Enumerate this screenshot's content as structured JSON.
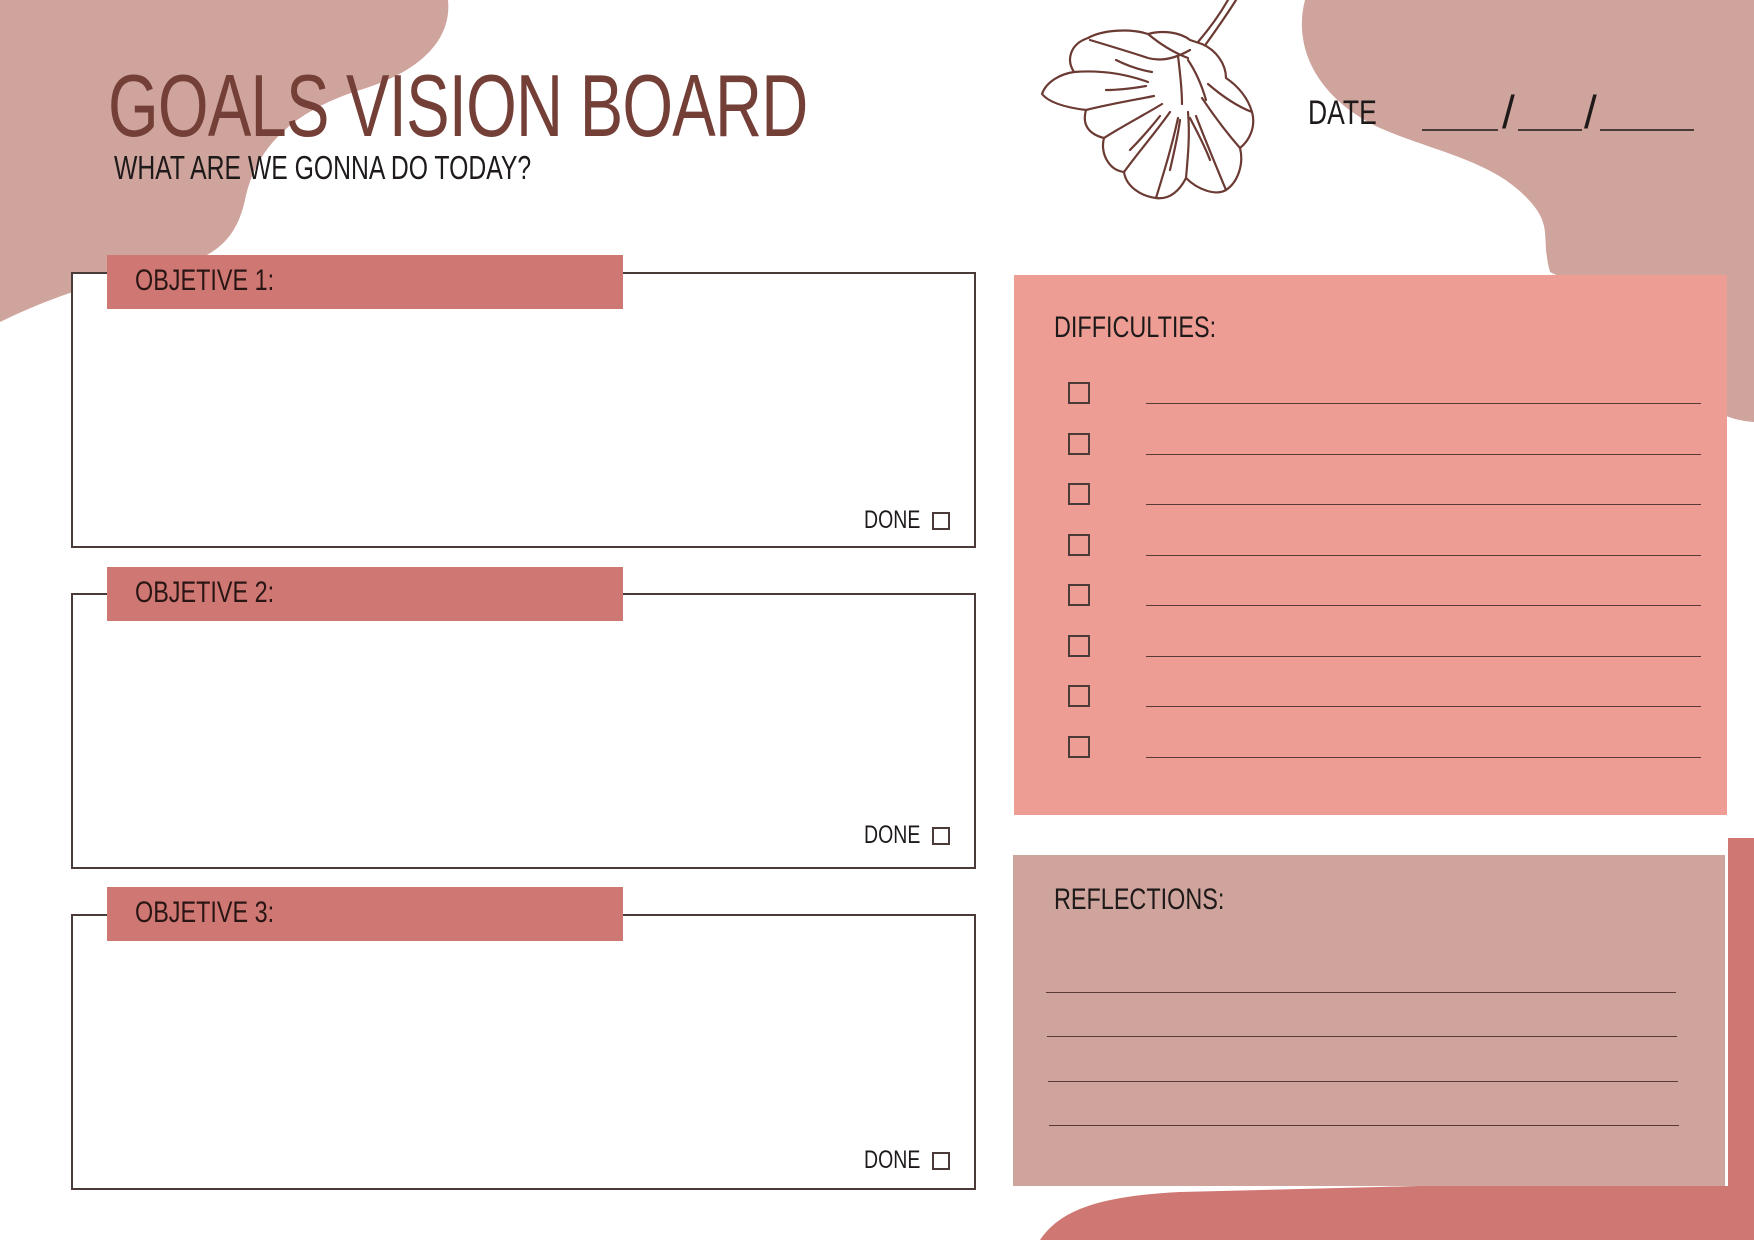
{
  "header": {
    "title": "GOALS VISION BOARD",
    "subtitle": "WHAT ARE WE GONNA DO TODAY?",
    "date_label": "DATE",
    "date_separator": "/"
  },
  "decor": {
    "flower": "flower-illustration-icon"
  },
  "objectives": [
    {
      "label": "OBJETIVE 1:",
      "done_label": "DONE",
      "done": false
    },
    {
      "label": "OBJETIVE 2:",
      "done_label": "DONE",
      "done": false
    },
    {
      "label": "OBJETIVE 3:",
      "done_label": "DONE",
      "done": false
    }
  ],
  "difficulties": {
    "title": "DIFFICULTIES:",
    "item_count": 8
  },
  "reflections": {
    "title": "REFLECTIONS:",
    "line_count": 4
  },
  "colors": {
    "title": "#733f37",
    "tab": "#cf7873",
    "difficulties_panel": "#ee9d95",
    "reflections_panel": "#cfa49c",
    "blob": "#cfa49c",
    "bottom_blob": "#cf7873",
    "outline": "#4a3a38"
  }
}
